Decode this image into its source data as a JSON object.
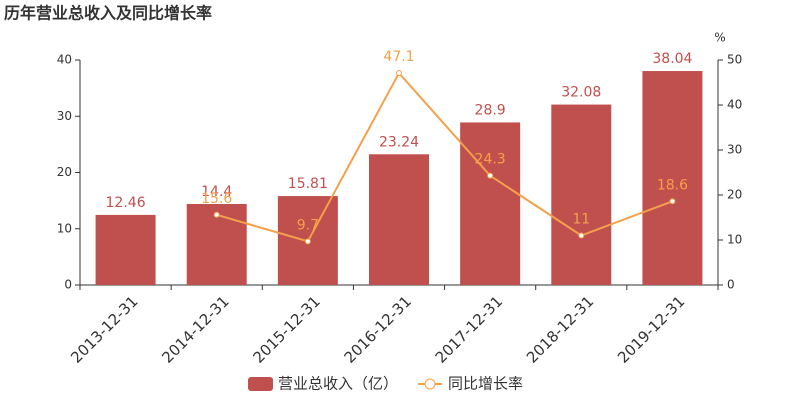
{
  "chart_data": {
    "type": "bar",
    "title": "历年营业总收入及同比增长率",
    "categories": [
      "2013-12-31",
      "2014-12-31",
      "2015-12-31",
      "2016-12-31",
      "2017-12-31",
      "2018-12-31",
      "2019-12-31"
    ],
    "series": [
      {
        "name": "营业总收入（亿）",
        "color": "#c0504d",
        "values": [
          12.46,
          14.4,
          15.81,
          23.24,
          28.9,
          32.08,
          38.04
        ]
      },
      {
        "name": "同比增长率",
        "type": "line",
        "axis": "y2",
        "color": "#f5a04a",
        "values": [
          null,
          15.6,
          9.7,
          47.1,
          24.3,
          11,
          18.6
        ]
      }
    ],
    "ylim": [
      0,
      40
    ],
    "yticks": [
      0,
      10,
      20,
      30,
      40
    ],
    "y2label": "%",
    "y2lim": [
      0,
      50
    ],
    "y2ticks": [
      0,
      10,
      20,
      30,
      40,
      50
    ],
    "legend": "bottom"
  }
}
